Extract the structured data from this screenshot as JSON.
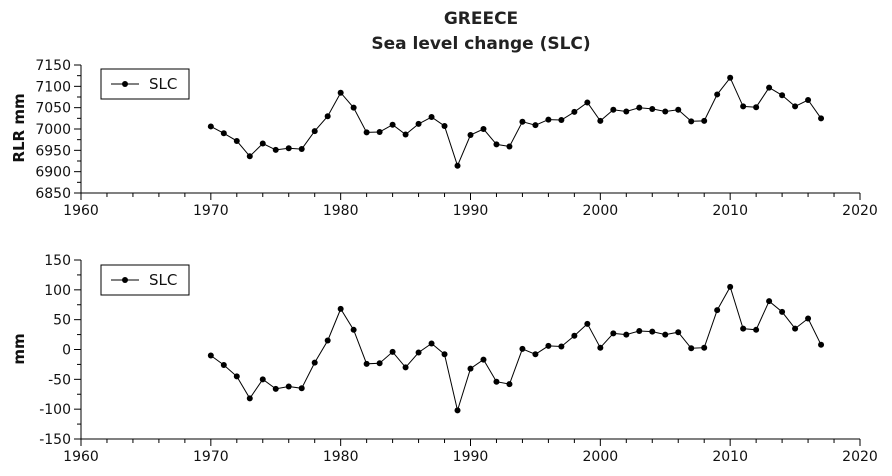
{
  "chart_data": {
    "title": "GREECE",
    "subtitle": "Sea level change (SLC)",
    "panels": [
      {
        "type": "line",
        "ylabel": "RLR mm",
        "legend": "SLC",
        "legend_placement": "top-left",
        "xlim": [
          1960,
          2020
        ],
        "ylim": [
          6850,
          7150
        ],
        "xticks": [
          1960,
          1970,
          1980,
          1990,
          2000,
          2010,
          2020
        ],
        "yticks": [
          6850,
          6900,
          6950,
          7000,
          7050,
          7100,
          7150
        ],
        "x": [
          1970,
          1971,
          1972,
          1973,
          1974,
          1975,
          1976,
          1977,
          1978,
          1979,
          1980,
          1981,
          1982,
          1983,
          1984,
          1985,
          1986,
          1987,
          1988,
          1989,
          1990,
          1991,
          1992,
          1993,
          1994,
          1995,
          1996,
          1997,
          1998,
          1999,
          2000,
          2001,
          2002,
          2003,
          2004,
          2005,
          2006,
          2007,
          2008,
          2009,
          2010,
          2011,
          2012,
          2013,
          2014,
          2015,
          2016,
          2017
        ],
        "y": [
          7006,
          6990,
          6972,
          6936,
          6966,
          6951,
          6955,
          6953,
          6995,
          7030,
          7085,
          7050,
          6992,
          6993,
          7010,
          6987,
          7012,
          7028,
          7007,
          6914,
          6986,
          7000,
          6964,
          6959,
          7017,
          7009,
          7022,
          7021,
          7040,
          7062,
          7019,
          7045,
          7041,
          7050,
          7047,
          7041,
          7045,
          7018,
          7019,
          7081,
          7120,
          7053,
          7051,
          7097,
          7079,
          7053,
          7068,
          7025
        ]
      },
      {
        "type": "line",
        "ylabel": "mm",
        "legend": "SLC",
        "legend_placement": "top-left",
        "xlim": [
          1960,
          2020
        ],
        "ylim": [
          -150,
          150
        ],
        "xticks": [
          1960,
          1970,
          1980,
          1990,
          2000,
          2010,
          2020
        ],
        "yticks": [
          -150,
          -100,
          -50,
          0,
          50,
          100,
          150
        ],
        "x": [
          1970,
          1971,
          1972,
          1973,
          1974,
          1975,
          1976,
          1977,
          1978,
          1979,
          1980,
          1981,
          1982,
          1983,
          1984,
          1985,
          1986,
          1987,
          1988,
          1989,
          1990,
          1991,
          1992,
          1993,
          1994,
          1995,
          1996,
          1997,
          1998,
          1999,
          2000,
          2001,
          2002,
          2003,
          2004,
          2005,
          2006,
          2007,
          2008,
          2009,
          2010,
          2011,
          2012,
          2013,
          2014,
          2015,
          2016,
          2017
        ],
        "y": [
          -10,
          -26,
          -45,
          -82,
          -50,
          -66,
          -62,
          -65,
          -22,
          15,
          68,
          33,
          -24,
          -23,
          -4,
          -30,
          -5,
          10,
          -8,
          -102,
          -32,
          -17,
          -54,
          -58,
          1,
          -8,
          6,
          5,
          23,
          43,
          3,
          27,
          25,
          31,
          30,
          25,
          29,
          2,
          3,
          66,
          105,
          35,
          33,
          81,
          63,
          35,
          52,
          8
        ]
      }
    ]
  }
}
